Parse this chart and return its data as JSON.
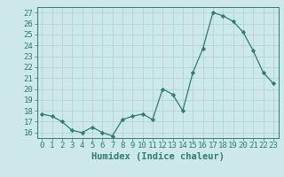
{
  "x": [
    0,
    1,
    2,
    3,
    4,
    5,
    6,
    7,
    8,
    9,
    10,
    11,
    12,
    13,
    14,
    15,
    16,
    17,
    18,
    19,
    20,
    21,
    22,
    23
  ],
  "y": [
    17.7,
    17.5,
    17.0,
    16.2,
    16.0,
    16.5,
    16.0,
    15.7,
    17.2,
    17.5,
    17.7,
    17.2,
    20.0,
    19.5,
    18.0,
    21.5,
    23.7,
    27.0,
    26.7,
    26.2,
    25.2,
    23.5,
    21.5,
    20.5
  ],
  "line_color": "#2e7d6e",
  "marker_color": "#2e7d6e",
  "bg_color": "#cce8e8",
  "grid_color": "#afd0cc",
  "xlabel": "Humidex (Indice chaleur)",
  "ylim_min": 15.5,
  "ylim_max": 27.5,
  "yticks": [
    16,
    17,
    18,
    19,
    20,
    21,
    22,
    23,
    24,
    25,
    26,
    27
  ],
  "xticks": [
    0,
    1,
    2,
    3,
    4,
    5,
    6,
    7,
    8,
    9,
    10,
    11,
    12,
    13,
    14,
    15,
    16,
    17,
    18,
    19,
    20,
    21,
    22,
    23
  ],
  "tick_label_fontsize": 6.5,
  "xlabel_fontsize": 7.5
}
